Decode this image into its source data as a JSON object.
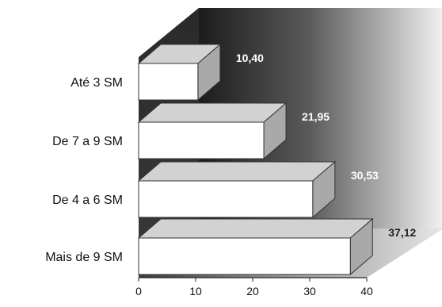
{
  "chart_data": {
    "type": "bar",
    "orientation": "horizontal",
    "style": "3d",
    "categories": [
      "Até 3 SM",
      "De 7 a 9 SM",
      "De 4 a 6 SM",
      "Mais de 9 SM"
    ],
    "values": [
      10.4,
      21.95,
      30.53,
      37.12
    ],
    "value_labels": [
      "10,40",
      "21,95",
      "30,53",
      "37,12"
    ],
    "xlim": [
      0,
      40
    ],
    "xticks": [
      0,
      10,
      20,
      30,
      40
    ],
    "xtick_labels": [
      "0",
      "10",
      "20",
      "30",
      "40"
    ],
    "grid": false,
    "legend": "none",
    "title": "",
    "xlabel": "",
    "ylabel": "",
    "colors": {
      "bar_front": "#ffffff",
      "bar_top": "#d2d2d2",
      "bar_side": "#a9a9a9",
      "bar_stroke": "#333333",
      "wall_dark": "#1c1c1c",
      "wall_light": "#f2f2f2",
      "floor": "#e4e4e4",
      "label_light": "#ffffff",
      "label_dark": "#222222"
    }
  }
}
